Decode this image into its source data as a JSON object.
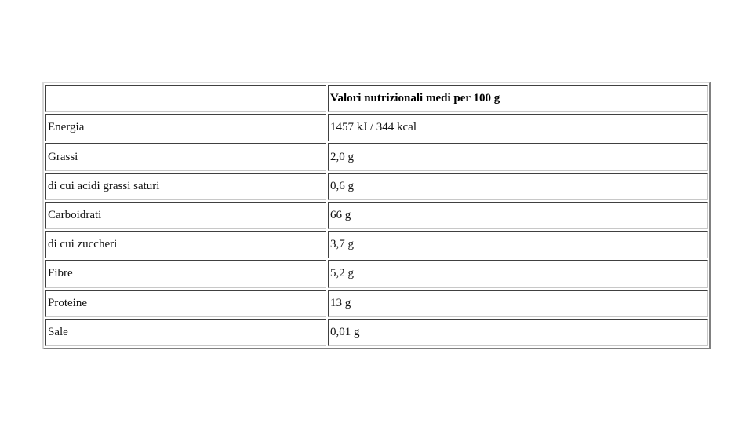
{
  "table": {
    "header": [
      "",
      "Valori nutrizionali medi per 100 g"
    ],
    "rows": [
      [
        "Energia",
        "1457 kJ / 344 kcal"
      ],
      [
        "Grassi",
        "2,0 g"
      ],
      [
        "di cui acidi grassi saturi",
        "0,6 g"
      ],
      [
        "Carboidrati",
        "66 g"
      ],
      [
        "di cui zuccheri",
        "3,7 g"
      ],
      [
        "Fibre",
        "5,2 g"
      ],
      [
        "Proteine",
        "13 g"
      ],
      [
        "Sale",
        "0,01 g"
      ]
    ]
  }
}
